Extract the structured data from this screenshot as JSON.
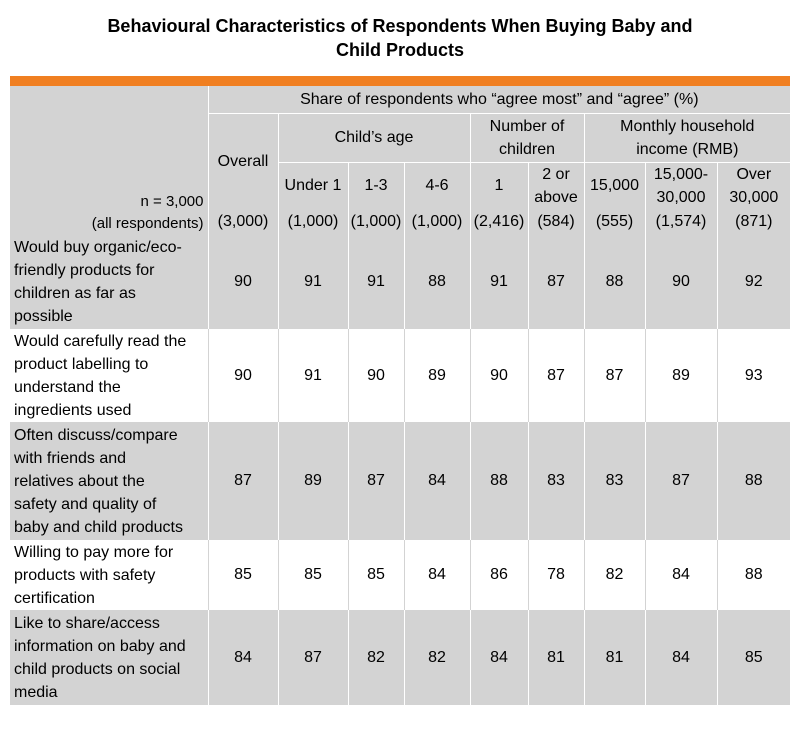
{
  "title_line1": "Behavioural Characteristics of Respondents When Buying Baby and",
  "title_line2": "Child Products",
  "chart_data": {
    "type": "table",
    "n_label": "n = 3,000",
    "n_sublabel": "(all respondents)",
    "super_header": "Share of respondents who “agree most” and “agree” (%)",
    "overall_label": "Overall",
    "groups": [
      {
        "label": "Child’s age",
        "columns": [
          "Under 1",
          "1-3",
          "4-6"
        ]
      },
      {
        "label_line1": "Number of",
        "label_line2": "children",
        "columns": [
          "1",
          "2 or above"
        ]
      },
      {
        "label_line1": "Monthly household",
        "label_line2": "income (RMB)",
        "columns": [
          "15,000",
          "15,000-30,000",
          "Over 30,000"
        ]
      }
    ],
    "column_headers": {
      "under1": "Under 1",
      "age13": "1-3",
      "age46": "4-6",
      "one": "1",
      "two_line1": "2 or",
      "two_line2": "above",
      "inc1": "15,000",
      "inc2_line1": "15,000-",
      "inc2_line2": "30,000",
      "inc3_line1": "Over",
      "inc3_line2": "30,000"
    },
    "sample_sizes": [
      "(3,000)",
      "(1,000)",
      "(1,000)",
      "(1,000)",
      "(2,416)",
      "(584)",
      "(555)",
      "(1,574)",
      "(871)"
    ],
    "rows": [
      {
        "lines": [
          "Would buy organic/eco-",
          "friendly products for",
          "children as far as",
          "possible"
        ],
        "values": [
          90,
          91,
          91,
          88,
          91,
          87,
          88,
          90,
          92
        ]
      },
      {
        "lines": [
          "Would carefully read the",
          "product labelling to",
          "understand the",
          "ingredients used"
        ],
        "values": [
          90,
          91,
          90,
          89,
          90,
          87,
          87,
          89,
          93
        ]
      },
      {
        "lines": [
          "Often discuss/compare",
          "with friends and",
          "relatives about the",
          "safety and quality of",
          "baby and child products"
        ],
        "values": [
          87,
          89,
          87,
          84,
          88,
          83,
          83,
          87,
          88
        ]
      },
      {
        "lines": [
          "Willing to pay more for",
          "products with safety",
          "certification"
        ],
        "values": [
          85,
          85,
          85,
          84,
          86,
          78,
          82,
          84,
          88
        ]
      },
      {
        "lines": [
          "Like to share/access",
          "information on baby and",
          "child products on social",
          "media"
        ],
        "values": [
          84,
          87,
          82,
          82,
          84,
          81,
          81,
          84,
          85
        ]
      }
    ]
  }
}
